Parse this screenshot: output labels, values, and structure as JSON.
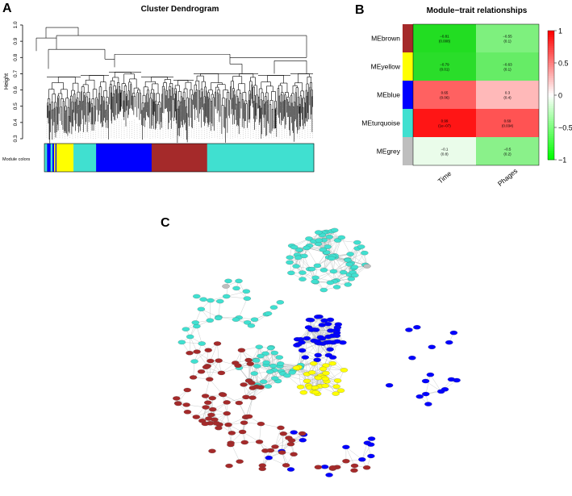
{
  "figure": {
    "panel_a": {
      "letter": "A",
      "title": "Cluster Dendrogram",
      "y_axis_label": "Height",
      "y_ticks": [
        "1.0",
        "0.9",
        "0.8",
        "0.7",
        "0.6",
        "0.5",
        "0.4",
        "0.3"
      ],
      "module_colors_label": "Module colors",
      "module_color_blocks": [
        {
          "color": "#40E0D0",
          "fraction": 0.01
        },
        {
          "color": "#0000FF",
          "fraction": 0.013
        },
        {
          "color": "#40E0D0",
          "fraction": 0.007
        },
        {
          "color": "#0000FF",
          "fraction": 0.006
        },
        {
          "color": "#FFFF00",
          "fraction": 0.005
        },
        {
          "color": "#0000FF",
          "fraction": 0.004
        },
        {
          "color": "#FFFF00",
          "fraction": 0.063
        },
        {
          "color": "#40E0D0",
          "fraction": 0.084
        },
        {
          "color": "#0000FF",
          "fraction": 0.206
        },
        {
          "color": "#A52A2A",
          "fraction": 0.206
        },
        {
          "color": "#40E0D0",
          "fraction": 0.396
        }
      ]
    },
    "panel_b": {
      "letter": "B",
      "title": "Module−trait relationships",
      "rows": [
        {
          "name": "MEbrown",
          "color": "#A52A2A",
          "cells": [
            {
              "value": "−0.81",
              "p": "(0.008)",
              "fill": "#22DD22"
            },
            {
              "value": "−0.55",
              "p": "(0.1)",
              "fill": "#7EF07E"
            }
          ]
        },
        {
          "name": "MEyellow",
          "color": "#FFFF00",
          "cells": [
            {
              "value": "−0.79",
              "p": "(0.01)",
              "fill": "#2ADD2A"
            },
            {
              "value": "−0.63",
              "p": "(0.1)",
              "fill": "#66EC66"
            }
          ]
        },
        {
          "name": "MEblue",
          "color": "#0000FF",
          "cells": [
            {
              "value": "0.65",
              "p": "(0.06)",
              "fill": "#FF6161"
            },
            {
              "value": "0.3",
              "p": "(0.4)",
              "fill": "#FFB9B9"
            }
          ]
        },
        {
          "name": "MEturquoise",
          "color": "#40E0D0",
          "cells": [
            {
              "value": "0.99",
              "p": "(1e−07)",
              "fill": "#FF1515"
            },
            {
              "value": "0.69",
              "p": "(0.034)",
              "fill": "#FF5353"
            }
          ]
        },
        {
          "name": "MEgrey",
          "color": "#BEBEBE",
          "cells": [
            {
              "value": "−0.1",
              "p": "(0.8)",
              "fill": "#EAFCEA"
            },
            {
              "value": "−0.5",
              "p": "(0.2)",
              "fill": "#8AF18A"
            }
          ]
        }
      ],
      "columns": [
        "Time",
        "Phages"
      ],
      "scale_ticks": [
        "1",
        "0.5",
        "0",
        "−0.5",
        "−1"
      ]
    },
    "panel_c": {
      "letter": "C"
    }
  }
}
